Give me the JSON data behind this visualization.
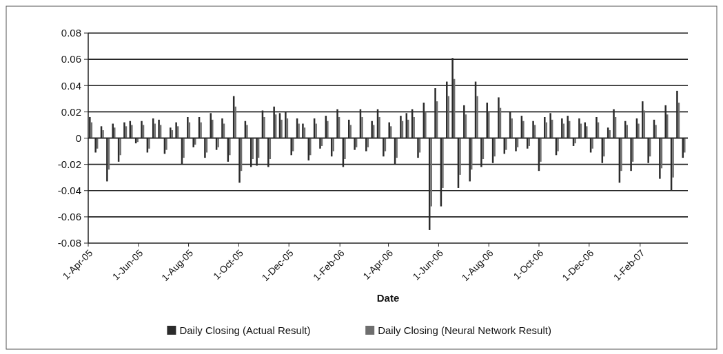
{
  "chart_data": {
    "type": "bar",
    "xlabel": "Date",
    "xlim": [
      "2005-04-01",
      "2007-03-31"
    ],
    "xticks": [
      {
        "value": "2005-04-01",
        "label": "1-Apr-05"
      },
      {
        "value": "2005-06-01",
        "label": "1-Jun-05"
      },
      {
        "value": "2005-08-01",
        "label": "1-Aug-05"
      },
      {
        "value": "2005-10-01",
        "label": "1-Oct-05"
      },
      {
        "value": "2005-12-01",
        "label": "1-Dec-05"
      },
      {
        "value": "2006-02-01",
        "label": "1-Feb-06"
      },
      {
        "value": "2006-04-01",
        "label": "1-Apr-06"
      },
      {
        "value": "2006-06-01",
        "label": "1-Jun-06"
      },
      {
        "value": "2006-08-01",
        "label": "1-Aug-06"
      },
      {
        "value": "2006-10-01",
        "label": "1-Oct-06"
      },
      {
        "value": "2006-12-01",
        "label": "1-Dec-06"
      },
      {
        "value": "2007-02-01",
        "label": "1-Feb-07"
      }
    ],
    "ylim": [
      -0.08,
      0.08
    ],
    "yticks": [
      -0.08,
      -0.06,
      -0.04,
      -0.02,
      0,
      0.02,
      0.04,
      0.06,
      0.08
    ],
    "grid": "y",
    "legend": "bottom",
    "x": [
      "2005-04-04",
      "2005-04-11",
      "2005-04-18",
      "2005-04-25",
      "2005-05-02",
      "2005-05-09",
      "2005-05-16",
      "2005-05-23",
      "2005-05-30",
      "2005-06-06",
      "2005-06-13",
      "2005-06-20",
      "2005-06-27",
      "2005-07-04",
      "2005-07-11",
      "2005-07-18",
      "2005-07-25",
      "2005-08-01",
      "2005-08-08",
      "2005-08-15",
      "2005-08-22",
      "2005-08-29",
      "2005-09-05",
      "2005-09-12",
      "2005-09-19",
      "2005-09-26",
      "2005-10-03",
      "2005-10-10",
      "2005-10-17",
      "2005-10-24",
      "2005-10-31",
      "2005-11-07",
      "2005-11-14",
      "2005-11-21",
      "2005-11-28",
      "2005-12-05",
      "2005-12-12",
      "2005-12-19",
      "2005-12-26",
      "2006-01-02",
      "2006-01-09",
      "2006-01-16",
      "2006-01-23",
      "2006-01-30",
      "2006-02-06",
      "2006-02-13",
      "2006-02-20",
      "2006-02-27",
      "2006-03-06",
      "2006-03-13",
      "2006-03-20",
      "2006-03-27",
      "2006-04-03",
      "2006-04-10",
      "2006-04-17",
      "2006-04-24",
      "2006-05-01",
      "2006-05-08",
      "2006-05-15",
      "2006-05-22",
      "2006-05-29",
      "2006-06-05",
      "2006-06-12",
      "2006-06-19",
      "2006-06-26",
      "2006-07-03",
      "2006-07-10",
      "2006-07-17",
      "2006-07-24",
      "2006-07-31",
      "2006-08-07",
      "2006-08-14",
      "2006-08-21",
      "2006-08-28",
      "2006-09-04",
      "2006-09-11",
      "2006-09-18",
      "2006-09-25",
      "2006-10-02",
      "2006-10-09",
      "2006-10-16",
      "2006-10-23",
      "2006-10-30",
      "2006-11-06",
      "2006-11-13",
      "2006-11-20",
      "2006-11-27",
      "2006-12-04",
      "2006-12-11",
      "2006-12-18",
      "2006-12-25",
      "2007-01-01",
      "2007-01-08",
      "2007-01-15",
      "2007-01-22",
      "2007-01-29",
      "2007-02-05",
      "2007-02-12",
      "2007-02-19",
      "2007-02-26",
      "2007-03-05",
      "2007-03-12",
      "2007-03-19",
      "2007-03-26"
    ],
    "series": [
      {
        "name": "Daily Closing (Actual Result)",
        "color": "#2b2b2b",
        "values": [
          0.016,
          -0.011,
          0.009,
          -0.033,
          0.011,
          -0.018,
          0.012,
          0.013,
          -0.004,
          0.013,
          -0.011,
          0.015,
          0.014,
          -0.012,
          0.008,
          0.012,
          -0.02,
          0.016,
          -0.007,
          0.016,
          -0.015,
          0.019,
          -0.009,
          0.015,
          -0.018,
          0.032,
          -0.034,
          0.013,
          -0.022,
          -0.021,
          0.021,
          -0.022,
          0.024,
          0.019,
          0.02,
          -0.013,
          0.015,
          0.011,
          -0.017,
          0.015,
          -0.008,
          0.017,
          -0.014,
          0.022,
          -0.022,
          0.014,
          -0.009,
          0.022,
          -0.01,
          0.013,
          0.022,
          -0.014,
          0.012,
          -0.02,
          0.017,
          0.019,
          0.022,
          -0.015,
          0.027,
          -0.07,
          0.038,
          -0.052,
          0.043,
          0.061,
          -0.038,
          0.025,
          -0.033,
          0.043,
          -0.022,
          0.027,
          -0.019,
          0.031,
          -0.012,
          0.02,
          -0.01,
          0.017,
          -0.008,
          0.013,
          -0.025,
          0.016,
          0.019,
          -0.013,
          0.015,
          0.017,
          -0.006,
          0.015,
          0.012,
          -0.011,
          0.016,
          -0.019,
          0.008,
          0.022,
          -0.034,
          0.013,
          -0.025,
          0.015,
          0.028,
          -0.019,
          0.014,
          -0.031,
          0.025,
          -0.04,
          0.036,
          -0.015
        ]
      },
      {
        "name": "Daily Closing (Neural Network Result)",
        "color": "#6e6e6e",
        "values": [
          0.012,
          -0.008,
          0.006,
          -0.024,
          0.008,
          -0.013,
          0.009,
          0.01,
          -0.003,
          0.01,
          -0.008,
          0.011,
          0.01,
          -0.009,
          0.006,
          0.009,
          -0.015,
          0.012,
          -0.005,
          0.012,
          -0.011,
          0.014,
          -0.007,
          0.011,
          -0.013,
          0.024,
          -0.025,
          0.01,
          -0.016,
          -0.015,
          0.016,
          -0.016,
          0.018,
          0.014,
          0.015,
          -0.01,
          0.011,
          0.008,
          -0.013,
          0.011,
          -0.006,
          0.013,
          -0.01,
          0.016,
          -0.016,
          0.01,
          -0.007,
          0.016,
          -0.007,
          0.01,
          0.016,
          -0.01,
          0.009,
          -0.015,
          0.013,
          0.014,
          0.016,
          -0.011,
          0.02,
          -0.052,
          0.028,
          -0.038,
          0.032,
          0.045,
          -0.028,
          0.018,
          -0.024,
          0.032,
          -0.016,
          0.02,
          -0.014,
          0.023,
          -0.009,
          0.015,
          -0.007,
          0.013,
          -0.006,
          0.01,
          -0.018,
          0.012,
          0.014,
          -0.01,
          0.011,
          0.013,
          -0.004,
          0.011,
          0.009,
          -0.008,
          0.012,
          -0.014,
          0.006,
          0.016,
          -0.025,
          0.01,
          -0.018,
          0.011,
          0.021,
          -0.014,
          0.01,
          -0.023,
          0.018,
          -0.03,
          0.027,
          -0.011
        ]
      }
    ]
  }
}
